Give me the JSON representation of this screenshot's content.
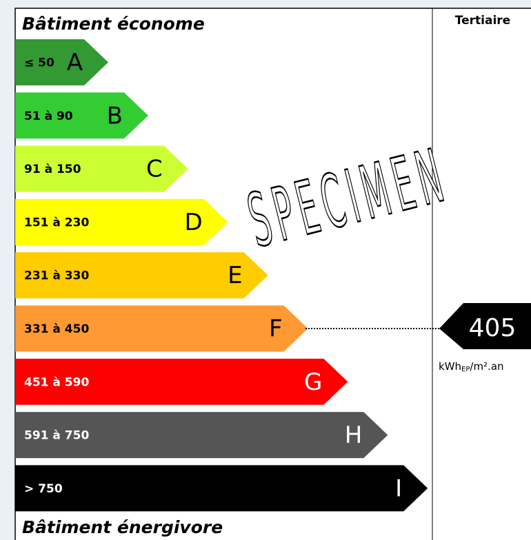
{
  "top_label": "Bâtiment économe",
  "bottom_label": "Bâtiment énergivore",
  "column_header": "Tertiaire",
  "watermark": "SPECIMEN",
  "classes": [
    {
      "range": "≤ 50",
      "letter": "A",
      "color": "#339933"
    },
    {
      "range": "51 à 90",
      "letter": "B",
      "color": "#33cc33"
    },
    {
      "range": "91 à 150",
      "letter": "C",
      "color": "#ccff33"
    },
    {
      "range": "151 à 230",
      "letter": "D",
      "color": "#ffff00"
    },
    {
      "range": "231 à 330",
      "letter": "E",
      "color": "#ffcc00"
    },
    {
      "range": "331 à 450",
      "letter": "F",
      "color": "#ff9933"
    },
    {
      "range": "451 à 590",
      "letter": "G",
      "color": "#ff0000"
    },
    {
      "range": "591 à 750",
      "letter": "H",
      "color": "#555555"
    },
    {
      "range": "> 750",
      "letter": "I",
      "color": "#000000"
    }
  ],
  "indicator": {
    "value": 405,
    "unit": {
      "main": "kWh",
      "sub": "EP",
      "rest": "/m².an"
    }
  }
}
